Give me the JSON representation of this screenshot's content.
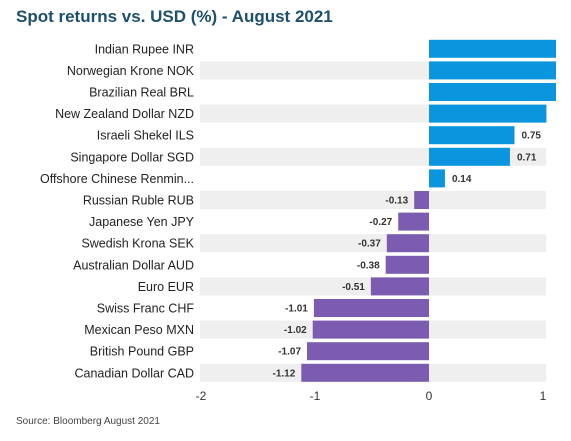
{
  "chart_data": {
    "type": "bar",
    "orientation": "horizontal",
    "title": "Spot returns vs. USD (%) - August 2021",
    "source": "Source: Bloomberg August 2021",
    "categories": [
      "Indian Rupee INR",
      "Norwegian Krone NOK",
      "Brazilian Real BRL",
      "New Zealand Dollar NZD",
      "Israeli Shekel ILS",
      "Singapore Dollar SGD",
      "Offshore Chinese Renmin...",
      "Russian Ruble RUB",
      "Japanese Yen JPY",
      "Swedish Krona SEK",
      "Australian Dollar AUD",
      "Euro EUR",
      "Swiss Franc CHF",
      "Mexican Peso MXN",
      "British Pound GBP",
      "Canadian Dollar CAD"
    ],
    "values": [
      1.22,
      1.18,
      1.14,
      1.03,
      0.75,
      0.71,
      0.14,
      -0.13,
      -0.27,
      -0.37,
      -0.38,
      -0.51,
      -1.01,
      -1.02,
      -1.07,
      -1.12
    ],
    "value_labels": [
      "",
      "",
      "",
      "",
      "0.75",
      "0.71",
      "0.14",
      "-0.13",
      "-0.27",
      "-0.37",
      "-0.38",
      "-0.51",
      "-1.01",
      "-1.02",
      "-1.07",
      "-1.12"
    ],
    "xlim": [
      -2,
      1
    ],
    "xticks": [
      -2,
      -1,
      0,
      1
    ],
    "xtick_labels": [
      "-2",
      "-1",
      "0",
      "1"
    ],
    "colors": {
      "positive": "#0b95de",
      "negative": "#7b5cb0",
      "stripe": "#efefef"
    },
    "grid": false,
    "legend": "none"
  }
}
